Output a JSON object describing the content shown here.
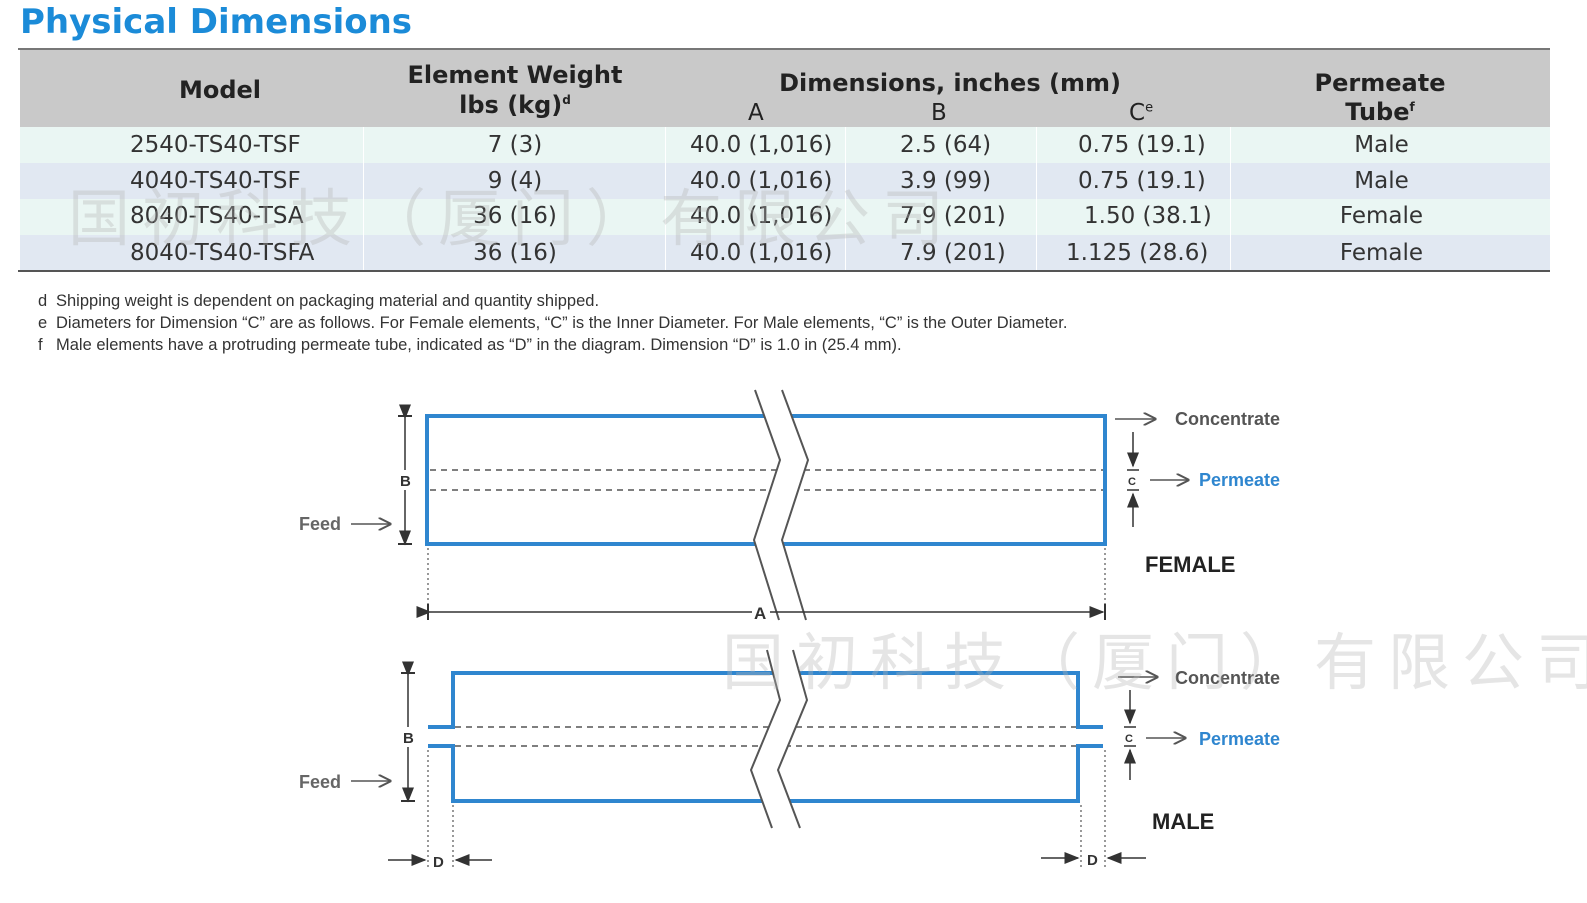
{
  "title": "Physical Dimensions",
  "table": {
    "headers": {
      "model": "Model",
      "weight_line1": "Element Weight",
      "weight_line2": "lbs (kg)",
      "weight_sup": "d",
      "dimensions": "Dimensions, inches (mm)",
      "dim_a": "A",
      "dim_b": "B",
      "dim_c": "C",
      "dim_c_sup": "e",
      "tube_line1": "Permeate",
      "tube_line2": "Tube",
      "tube_sup": "f"
    },
    "rows": [
      {
        "model": "2540-TS40-TSF",
        "weight": "7 (3)",
        "a": "40.0 (1,016)",
        "b": "2.5 (64)",
        "c": "0.75 (19.1)",
        "tube": "Male"
      },
      {
        "model": "4040-TS40-TSF",
        "weight": "9 (4)",
        "a": "40.0 (1,016)",
        "b": "3.9 (99)",
        "c": "0.75 (19.1)",
        "tube": "Male"
      },
      {
        "model": "8040-TS40-TSA",
        "weight": "36 (16)",
        "a": "40.0 (1,016)",
        "b": "7.9 (201)",
        "c": "1.50 (38.1)",
        "tube": "Female"
      },
      {
        "model": "8040-TS40-TSFA",
        "weight": "36 (16)",
        "a": "40.0 (1,016)",
        "b": "7.9 (201)",
        "c": "1.125 (28.6)",
        "tube": "Female"
      }
    ]
  },
  "footnotes": [
    {
      "key": "d",
      "text": "Shipping weight is dependent on packaging material and quantity shipped."
    },
    {
      "key": "e",
      "text": "Diameters for Dimension “C” are as follows. For Female elements, “C” is the Inner Diameter. For Male elements, “C” is the Outer Diameter."
    },
    {
      "key": "f",
      "text": "Male elements have a protruding permeate tube, indicated as “D” in the diagram. Dimension “D” is 1.0 in (25.4 mm)."
    }
  ],
  "diagram": {
    "feed": "Feed",
    "concentrate": "Concentrate",
    "permeate": "Permeate",
    "female": "FEMALE",
    "male": "MALE",
    "dim_a": "A",
    "dim_b": "B",
    "dim_c": "C",
    "dim_d": "D"
  },
  "watermark": "国初科技（厦门）有限公司",
  "colors": {
    "accent": "#1b8bd8",
    "header_bg": "#c9c9c9",
    "row_a": "#eaf6f3",
    "row_b": "#e1e8f2",
    "element_stroke": "#2f86cf"
  }
}
